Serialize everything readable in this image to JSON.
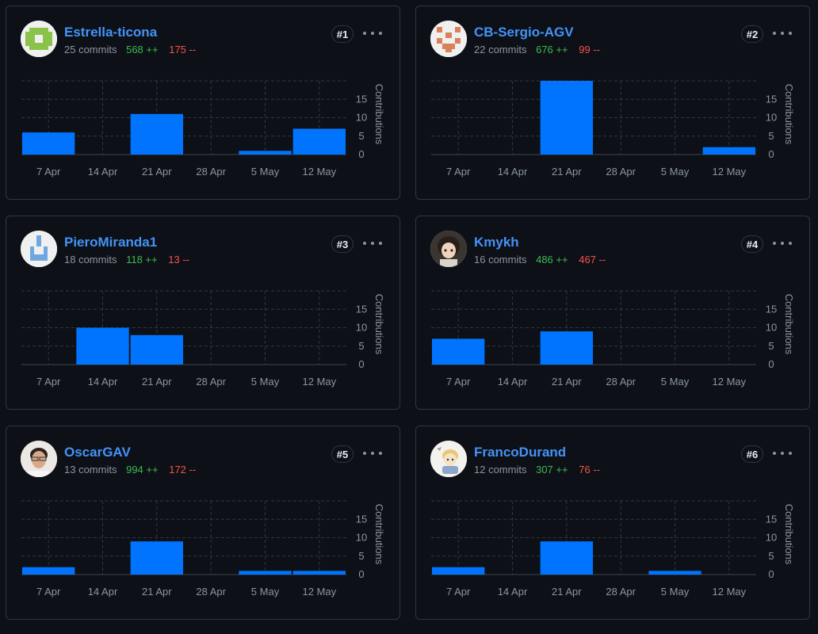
{
  "theme": {
    "bar_color": "#0074ff",
    "grid_color": "#30363d",
    "axis_text_color": "#8b949e",
    "username_color": "#4493f8",
    "additions_color": "#3fb950",
    "deletions_color": "#f85149"
  },
  "contributors": [
    {
      "rank": "#1",
      "username": "Estrella-ticona",
      "commits": "25 commits",
      "additions": "568 ++",
      "deletions": "175 --",
      "avatar": "green-identicon",
      "chart_data": {
        "type": "bar",
        "categories": [
          "7 Apr",
          "14 Apr",
          "21 Apr",
          "28 Apr",
          "5 May",
          "12 May"
        ],
        "values": [
          6,
          0,
          11,
          0,
          1,
          7
        ],
        "ylabel": "Contributions",
        "yticks": [
          0,
          5,
          10,
          15
        ],
        "ylim": [
          0,
          20
        ]
      }
    },
    {
      "rank": "#2",
      "username": "CB-Sergio-AGV",
      "commits": "22 commits",
      "additions": "676 ++",
      "deletions": "99 --",
      "avatar": "orange-identicon",
      "chart_data": {
        "type": "bar",
        "categories": [
          "7 Apr",
          "14 Apr",
          "21 Apr",
          "28 Apr",
          "5 May",
          "12 May"
        ],
        "values": [
          0,
          0,
          20,
          0,
          0,
          2
        ],
        "ylabel": "Contributions",
        "yticks": [
          0,
          5,
          10,
          15
        ],
        "ylim": [
          0,
          20
        ]
      }
    },
    {
      "rank": "#3",
      "username": "PieroMiranda1",
      "commits": "18 commits",
      "additions": "118 ++",
      "deletions": "13 --",
      "avatar": "blue-identicon",
      "chart_data": {
        "type": "bar",
        "categories": [
          "7 Apr",
          "14 Apr",
          "21 Apr",
          "28 Apr",
          "5 May",
          "12 May"
        ],
        "values": [
          0,
          10,
          8,
          0,
          0,
          0
        ],
        "ylabel": "Contributions",
        "yticks": [
          0,
          5,
          10,
          15
        ],
        "ylim": [
          0,
          20
        ]
      }
    },
    {
      "rank": "#4",
      "username": "Kmykh",
      "commits": "16 commits",
      "additions": "486 ++",
      "deletions": "467 --",
      "avatar": "anime-character-avatar",
      "chart_data": {
        "type": "bar",
        "categories": [
          "7 Apr",
          "14 Apr",
          "21 Apr",
          "28 Apr",
          "5 May",
          "12 May"
        ],
        "values": [
          7,
          0,
          9,
          0,
          0,
          0
        ],
        "ylabel": "Contributions",
        "yticks": [
          0,
          5,
          10,
          15
        ],
        "ylim": [
          0,
          20
        ]
      }
    },
    {
      "rank": "#5",
      "username": "OscarGAV",
      "commits": "13 commits",
      "additions": "994 ++",
      "deletions": "172 --",
      "avatar": "person-photo-avatar",
      "chart_data": {
        "type": "bar",
        "categories": [
          "7 Apr",
          "14 Apr",
          "21 Apr",
          "28 Apr",
          "5 May",
          "12 May"
        ],
        "values": [
          2,
          0,
          9,
          0,
          1,
          1
        ],
        "ylabel": "Contributions",
        "yticks": [
          0,
          5,
          10,
          15
        ],
        "ylim": [
          0,
          20
        ]
      }
    },
    {
      "rank": "#6",
      "username": "FrancoDurand",
      "commits": "12 commits",
      "additions": "307 ++",
      "deletions": "76 --",
      "avatar": "cartoon-avatar",
      "chart_data": {
        "type": "bar",
        "categories": [
          "7 Apr",
          "14 Apr",
          "21 Apr",
          "28 Apr",
          "5 May",
          "12 May"
        ],
        "values": [
          2,
          0,
          9,
          0,
          1,
          0
        ],
        "ylabel": "Contributions",
        "yticks": [
          0,
          5,
          10,
          15
        ],
        "ylim": [
          0,
          20
        ]
      }
    }
  ]
}
